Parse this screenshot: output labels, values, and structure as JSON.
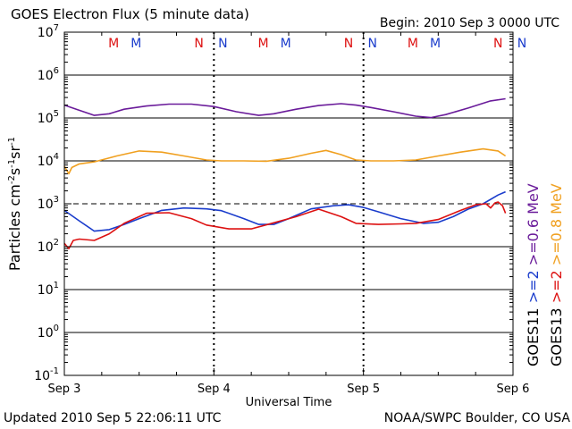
{
  "header": {
    "title": "GOES Electron Flux (5 minute data)",
    "begin": "Begin: 2010 Sep 3 0000 UTC"
  },
  "footer": {
    "updated": "Updated 2010 Sep  5 22:06:11 UTC",
    "source": "NOAA/SWPC Boulder, CO USA"
  },
  "colors": {
    "goes11_low": "#6a1b9a",
    "goes13_low": "#f0a020",
    "goes11_high": "#1a3ccc",
    "goes13_high": "#dd1111",
    "marker_m": "#dd1111",
    "marker_n": "#1a3ccc"
  },
  "chart_data": {
    "type": "line",
    "title": "GOES Electron Flux (5 minute data)",
    "xlabel": "Universal Time",
    "ylabel": "Particles cm-2s-1sr-1",
    "y_scale": "log",
    "ylim": [
      0.1,
      10000000
    ],
    "xlim": [
      0,
      3
    ],
    "x_unit": "days since 2010 Sep 3 0000 UTC",
    "x_tick_labels": [
      "Sep 3",
      "Sep 4",
      "Sep 5",
      "Sep 6"
    ],
    "y_tick_labels": [
      {
        "base": "10",
        "exp": "-1"
      },
      {
        "base": "10",
        "exp": "0"
      },
      {
        "base": "10",
        "exp": "1"
      },
      {
        "base": "10",
        "exp": "2"
      },
      {
        "base": "10",
        "exp": "3"
      },
      {
        "base": "10",
        "exp": "4"
      },
      {
        "base": "10",
        "exp": "5"
      },
      {
        "base": "10",
        "exp": "6"
      },
      {
        "base": "10",
        "exp": "7"
      }
    ],
    "threshold_line": 1000,
    "grid": true,
    "series": [
      {
        "name": "GOES11 >=0.6 MeV",
        "satellite": "GOES11",
        "energy": ">=0.6 MeV",
        "color": "#6a1b9a",
        "x": [
          0,
          0.08,
          0.2,
          0.3,
          0.4,
          0.55,
          0.7,
          0.85,
          1.0,
          1.15,
          1.3,
          1.4,
          1.55,
          1.7,
          1.85,
          1.95,
          2.05,
          2.2,
          2.35,
          2.45,
          2.55,
          2.7,
          2.85,
          2.95
        ],
        "y": [
          200000,
          160000,
          115000,
          125000,
          160000,
          190000,
          210000,
          210000,
          185000,
          140000,
          115000,
          125000,
          160000,
          195000,
          215000,
          200000,
          175000,
          140000,
          110000,
          102000,
          120000,
          170000,
          250000,
          280000
        ]
      },
      {
        "name": "GOES13 >=0.8 MeV",
        "satellite": "GOES13",
        "energy": ">=0.8 MeV",
        "color": "#f0a020",
        "x": [
          0,
          0.03,
          0.05,
          0.1,
          0.2,
          0.35,
          0.5,
          0.65,
          0.8,
          0.95,
          1.05,
          1.2,
          1.35,
          1.5,
          1.65,
          1.75,
          1.85,
          1.95,
          2.05,
          2.2,
          2.35,
          2.5,
          2.65,
          2.8,
          2.9,
          2.95
        ],
        "y": [
          7500,
          5000,
          7000,
          8500,
          9500,
          13000,
          17000,
          16000,
          13000,
          10500,
          10000,
          10000,
          9800,
          11500,
          15000,
          17500,
          14000,
          10500,
          10000,
          10000,
          10500,
          13000,
          16000,
          19000,
          17000,
          13000
        ]
      },
      {
        "name": "GOES11 >=2 MeV",
        "satellite": "GOES11",
        "energy": ">=2 MeV",
        "color": "#1a3ccc",
        "x": [
          0,
          0.1,
          0.2,
          0.3,
          0.4,
          0.5,
          0.65,
          0.8,
          0.95,
          1.05,
          1.2,
          1.3,
          1.4,
          1.5,
          1.65,
          1.8,
          1.9,
          2.0,
          2.1,
          2.25,
          2.4,
          2.5,
          2.6,
          2.7,
          2.8,
          2.9,
          2.95
        ],
        "y": [
          700,
          400,
          230,
          250,
          330,
          450,
          700,
          800,
          760,
          690,
          450,
          330,
          330,
          450,
          760,
          900,
          950,
          820,
          650,
          450,
          350,
          370,
          500,
          750,
          1000,
          1600,
          1900
        ]
      },
      {
        "name": "GOES13 >=2 MeV",
        "satellite": "GOES13",
        "energy": ">=2 MeV",
        "color": "#dd1111",
        "x": [
          0,
          0.03,
          0.06,
          0.1,
          0.2,
          0.3,
          0.4,
          0.55,
          0.7,
          0.85,
          0.95,
          1.1,
          1.25,
          1.4,
          1.55,
          1.7,
          1.85,
          1.95,
          2.1,
          2.25,
          2.35,
          2.5,
          2.65,
          2.75,
          2.82,
          2.85,
          2.88,
          2.9,
          2.93,
          2.95
        ],
        "y": [
          120,
          90,
          140,
          150,
          140,
          200,
          350,
          600,
          620,
          450,
          320,
          260,
          260,
          360,
          500,
          750,
          500,
          350,
          330,
          340,
          350,
          430,
          700,
          950,
          1000,
          800,
          1050,
          1100,
          900,
          600
        ]
      }
    ],
    "markers": [
      {
        "label": "M",
        "x": 0.33,
        "color": "#dd1111"
      },
      {
        "label": "M",
        "x": 0.48,
        "color": "#1a3ccc"
      },
      {
        "label": "N",
        "x": 0.9,
        "color": "#dd1111"
      },
      {
        "label": "N",
        "x": 1.06,
        "color": "#1a3ccc"
      },
      {
        "label": "M",
        "x": 1.33,
        "color": "#dd1111"
      },
      {
        "label": "M",
        "x": 1.48,
        "color": "#1a3ccc"
      },
      {
        "label": "N",
        "x": 1.9,
        "color": "#dd1111"
      },
      {
        "label": "N",
        "x": 2.06,
        "color": "#1a3ccc"
      },
      {
        "label": "M",
        "x": 2.33,
        "color": "#dd1111"
      },
      {
        "label": "M",
        "x": 2.48,
        "color": "#1a3ccc"
      },
      {
        "label": "N",
        "x": 2.9,
        "color": "#dd1111"
      },
      {
        "label": "N",
        "x": 3.06,
        "color": "#1a3ccc"
      }
    ],
    "legend": {
      "placement": "right",
      "columns": [
        {
          "satellite": "GOES11",
          "high": ">=2",
          "low": ">=0.6 MeV",
          "high_color": "#1a3ccc",
          "low_color": "#6a1b9a"
        },
        {
          "satellite": "GOES13",
          "high": ">=2",
          "low": ">=0.8 MeV",
          "high_color": "#dd1111",
          "low_color": "#f0a020"
        }
      ]
    }
  }
}
